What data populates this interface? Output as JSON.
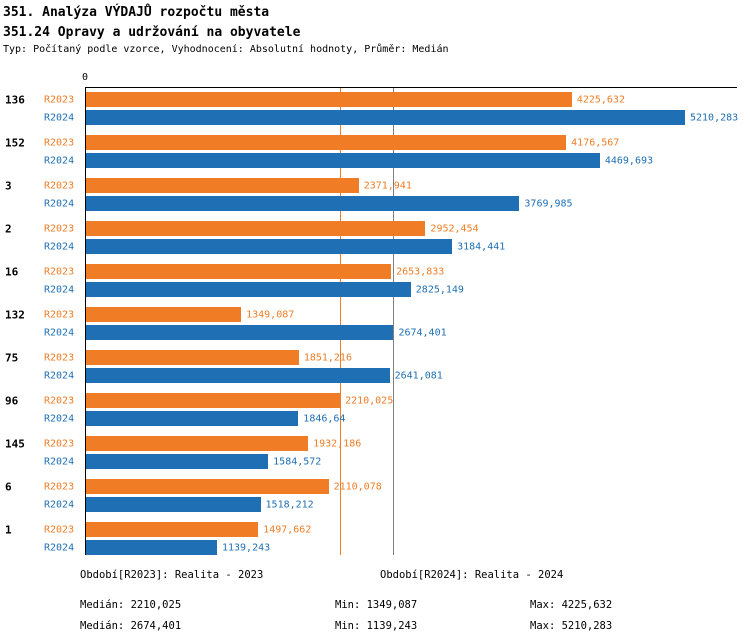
{
  "header": {
    "title_line1": "351. Analýza VÝDAJŮ rozpočtu města",
    "title_line2": "351.24 Opravy a udržování na obyvatele",
    "subtitle": "Typ: Počítaný podle vzorce, Vyhodnocení: Absolutní hodnoty, Průměr: Medián"
  },
  "colors": {
    "r2023": "#F07D25",
    "r2024": "#1F6FB4",
    "median_line_r2023": "#F07D25",
    "median_line_r2024": "#808080",
    "axis": "#000000"
  },
  "chart_data": {
    "type": "bar",
    "orientation": "horizontal",
    "title": "351. Analýza VÝDAJŮ rozpočtu města — 351.24 Opravy a udržování na obyvatele",
    "x_zero_label": "0",
    "xlim": [
      0,
      5210.283
    ],
    "grid": false,
    "legend_position": "bottom",
    "categories": [
      "136",
      "152",
      "3",
      "2",
      "16",
      "132",
      "75",
      "96",
      "145",
      "6",
      "1"
    ],
    "series": [
      {
        "name": "R2023",
        "color": "#F07D25",
        "values": [
          4225.632,
          4176.567,
          2371.941,
          2952.454,
          2653.833,
          1349.087,
          1851.216,
          2210.025,
          1932.186,
          2110.078,
          1497.662
        ],
        "value_labels": [
          "4225,632",
          "4176,567",
          "2371,941",
          "2952,454",
          "2653,833",
          "1349,087",
          "1851,216",
          "2210,025",
          "1932,186",
          "2110,078",
          "1497,662"
        ]
      },
      {
        "name": "R2024",
        "color": "#1F6FB4",
        "values": [
          5210.283,
          4469.693,
          3769.985,
          3184.441,
          2825.149,
          2674.401,
          2641.081,
          1846.64,
          1584.572,
          1518.212,
          1139.243
        ],
        "value_labels": [
          "5210,283",
          "4469,693",
          "3769,985",
          "3184,441",
          "2825,149",
          "2674,401",
          "2641,081",
          "1846,64",
          "1584,572",
          "1518,212",
          "1139,243"
        ]
      }
    ],
    "median_lines": [
      {
        "series": "R2023",
        "value": 2210.025,
        "color": "#F07D25"
      },
      {
        "series": "R2024",
        "value": 2674.401,
        "color": "#808080"
      }
    ]
  },
  "legend": {
    "r2023": "Období[R2023]: Realita - 2023",
    "r2024": "Období[R2024]: Realita - 2024"
  },
  "stats": {
    "r2023": {
      "median": "Medián: 2210,025",
      "min": "Min: 1349,087",
      "max": "Max: 4225,632"
    },
    "r2024": {
      "median": "Medián: 2674,401",
      "min": "Min: 1139,243",
      "max": "Max: 5210,283"
    }
  }
}
